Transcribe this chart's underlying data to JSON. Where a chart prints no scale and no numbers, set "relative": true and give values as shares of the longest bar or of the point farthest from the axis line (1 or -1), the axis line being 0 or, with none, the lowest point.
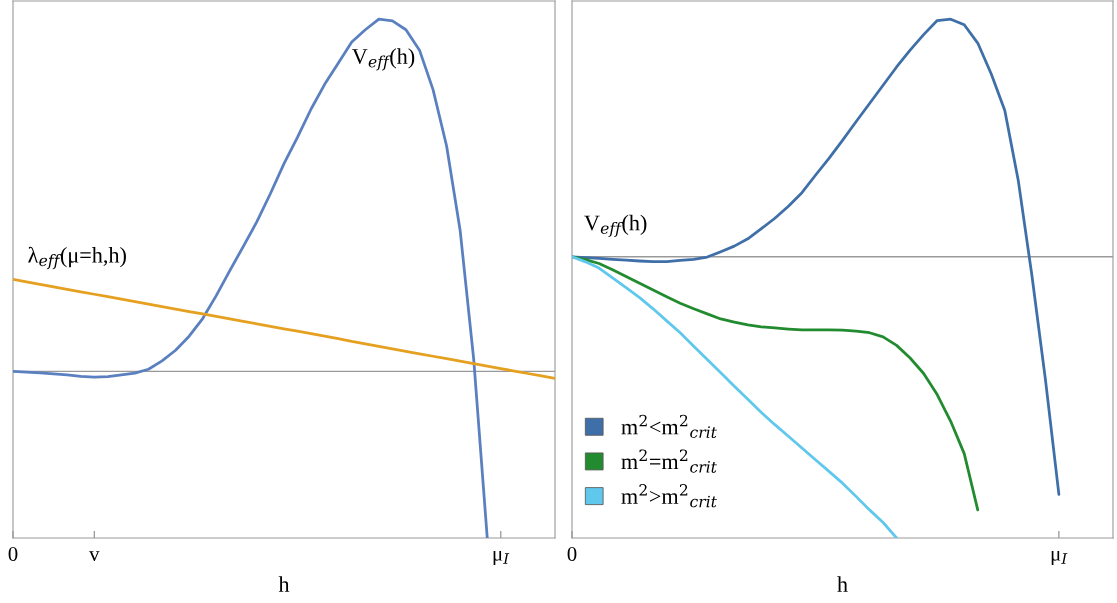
{
  "chart_data": [
    {
      "type": "line",
      "relative": true,
      "xlabel": "h",
      "categories": [
        "0",
        null,
        null,
        null,
        null,
        null,
        "v",
        null,
        null,
        null,
        null,
        null,
        null,
        null,
        null,
        null,
        null,
        null,
        null,
        null,
        null,
        null,
        null,
        null,
        null,
        null,
        null,
        null,
        null,
        null,
        null,
        null,
        null,
        null,
        null,
        null,
        "μ$_{I}$",
        null,
        null,
        null,
        null
      ],
      "tick_labels": "x",
      "legend": false,
      "marker": "none",
      "line_style": "solid",
      "series": [
        {
          "color": "#5b80c0",
          "values": [
            0,
            -0.002,
            -0.004,
            -0.007,
            -0.01,
            -0.014,
            -0.016,
            -0.015,
            -0.01,
            -0.005,
            0.006,
            0.03,
            0.06,
            0.1,
            0.15,
            0.215,
            0.286,
            0.355,
            0.425,
            0.505,
            0.59,
            0.665,
            0.745,
            0.815,
            0.875,
            0.935,
            0.97,
            1.0,
            0.995,
            0.97,
            0.912,
            0.8,
            0.64,
            0.4,
            0.035,
            -0.473,
            null,
            null,
            null,
            null,
            null
          ]
        },
        {
          "color": "#e6a020",
          "values": [
            0.261,
            0.254,
            0.247,
            0.24,
            0.233,
            0.226,
            0.219,
            0.212,
            0.205,
            0.198,
            0.191,
            0.184,
            0.177,
            0.17,
            0.163,
            0.156,
            0.149,
            0.142,
            0.135,
            0.128,
            0.121,
            0.114,
            0.107,
            0.1,
            0.093,
            0.085,
            0.078,
            0.071,
            0.064,
            0.057,
            0.05,
            0.043,
            0.036,
            0.029,
            0.022,
            0.015,
            0.008,
            0.001,
            -0.006,
            -0.013,
            -0.02
          ]
        }
      ],
      "annotations": [
        "V$_{eff}$(h)",
        "λ$_{eff}$(μ=h,h)"
      ]
    },
    {
      "type": "line",
      "relative": true,
      "xlabel": "h",
      "categories": [
        "0",
        null,
        null,
        null,
        null,
        null,
        null,
        null,
        null,
        null,
        null,
        null,
        null,
        null,
        null,
        null,
        null,
        null,
        null,
        null,
        null,
        null,
        null,
        null,
        null,
        null,
        null,
        null,
        null,
        null,
        null,
        null,
        null,
        null,
        null,
        null,
        "μ$_{I}$",
        null,
        null,
        null,
        null
      ],
      "tick_labels": "x",
      "legend": "bottom left",
      "marker": "none",
      "line_style": "solid",
      "series": [
        {
          "name": "m$^{2}$<m$^{2}$$_{crit}$",
          "color": "#3f6fa8",
          "values": [
            0,
            -0.003,
            -0.006,
            -0.009,
            -0.012,
            -0.015,
            -0.017,
            -0.017,
            -0.013,
            -0.009,
            -0.001,
            0.018,
            0.038,
            0.064,
            0.1,
            0.137,
            0.18,
            0.228,
            0.29,
            0.35,
            0.414,
            0.48,
            0.545,
            0.61,
            0.675,
            0.735,
            0.79,
            0.84,
            0.845,
            0.825,
            0.76,
            0.65,
            0.52,
            0.27,
            -0.065,
            -0.435,
            -0.845,
            null,
            null,
            null,
            null
          ]
        },
        {
          "name": "m$^{2}$=m$^{2}$$_{crit}$",
          "color": "#238b2f",
          "values": [
            0,
            -0.01,
            -0.024,
            -0.046,
            -0.07,
            -0.094,
            -0.118,
            -0.142,
            -0.165,
            -0.185,
            -0.203,
            -0.221,
            -0.232,
            -0.242,
            -0.249,
            -0.253,
            -0.257,
            -0.26,
            -0.26,
            -0.26,
            -0.261,
            -0.264,
            -0.27,
            -0.285,
            -0.315,
            -0.36,
            -0.415,
            -0.49,
            -0.585,
            -0.7,
            -0.9,
            null,
            null,
            null,
            null,
            null,
            null,
            null,
            null,
            null,
            null
          ]
        },
        {
          "name": "m$^{2}$>m$^{2}$$_{crit}$",
          "color": "#5fc8ec",
          "values": [
            0,
            -0.018,
            -0.04,
            -0.075,
            -0.11,
            -0.145,
            -0.185,
            -0.228,
            -0.27,
            -0.318,
            -0.365,
            -0.412,
            -0.46,
            -0.507,
            -0.554,
            -0.597,
            -0.638,
            -0.68,
            -0.722,
            -0.763,
            -0.805,
            -0.852,
            -0.9,
            -0.945,
            -1,
            null,
            null,
            null,
            null,
            null,
            null,
            null,
            null,
            null,
            null,
            null,
            null,
            null,
            null,
            null,
            null
          ]
        }
      ],
      "annotations": [
        "V$_{eff}$(h)"
      ]
    }
  ]
}
